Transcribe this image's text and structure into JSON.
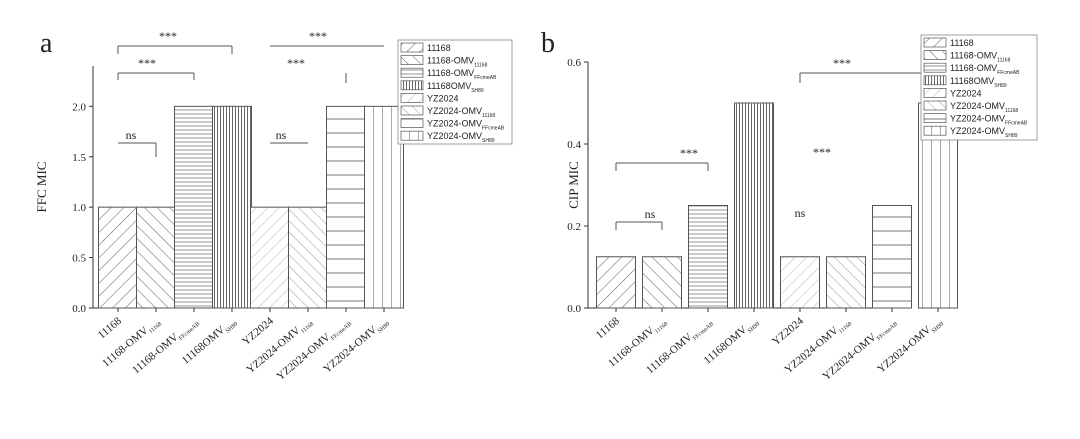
{
  "chart_data": [
    {
      "panel_label": "a",
      "type": "bar",
      "ylabel": "FFC MIC",
      "xlabel": "",
      "ylim": [
        0,
        2.4
      ],
      "yticks": [
        "0.0",
        "0.5",
        "1.0",
        "1.5",
        "2.0"
      ],
      "ytick_values": [
        0.0,
        0.5,
        1.0,
        1.5,
        2.0
      ],
      "grid": false,
      "legend_position": "top-right",
      "categories": [
        {
          "label": "11168",
          "sub": ""
        },
        {
          "label": "11168-OMV",
          "sub": "11168"
        },
        {
          "label": "11168-OMV",
          "sub": "FFcmeAB"
        },
        {
          "label": "11168OMV",
          "sub": "SH89"
        },
        {
          "label": "YZ2024",
          "sub": ""
        },
        {
          "label": "YZ2024-OMV",
          "sub": "11168"
        },
        {
          "label": "YZ2024-OMV",
          "sub": "FFcmeAB"
        },
        {
          "label": "YZ2024-OMV",
          "sub": "SH89"
        }
      ],
      "values": [
        1,
        1,
        2,
        2,
        1,
        1,
        2,
        2
      ],
      "legend": [
        {
          "label": "11168",
          "sub": ""
        },
        {
          "label": "11168-OMV",
          "sub": "11168"
        },
        {
          "label": "11168-OMV",
          "sub": "FFcmeAB"
        },
        {
          "label": "11168OMV",
          "sub": "SH89"
        },
        {
          "label": "YZ2024",
          "sub": ""
        },
        {
          "label": "YZ2024-OMV",
          "sub": "11168"
        },
        {
          "label": "YZ2024-OMV",
          "sub": "FFcmeAB"
        },
        {
          "label": "YZ2024-OMV",
          "sub": "SH89"
        }
      ],
      "annotations": [
        {
          "text": "***",
          "from": 0,
          "to": 3
        },
        {
          "text": "***",
          "from": 0,
          "to": 2
        },
        {
          "text": "ns",
          "from": 0,
          "to": 1
        },
        {
          "text": "***",
          "from": 4,
          "to": 7
        },
        {
          "text": "***",
          "from": 4,
          "to": 6
        },
        {
          "text": "ns",
          "from": 4,
          "to": 5
        }
      ]
    },
    {
      "panel_label": "b",
      "type": "bar",
      "ylabel": "CIP MIC",
      "xlabel": "",
      "ylim": [
        0,
        0.6
      ],
      "yticks": [
        "0.0",
        "0.2",
        "0.4",
        "0.6"
      ],
      "ytick_values": [
        0.0,
        0.2,
        0.4,
        0.6
      ],
      "grid": false,
      "legend_position": "top-right",
      "categories": [
        {
          "label": "11168",
          "sub": ""
        },
        {
          "label": "11168-OMV",
          "sub": "11168"
        },
        {
          "label": "11168-OMV",
          "sub": "FFcmeAB"
        },
        {
          "label": "11168OMV",
          "sub": "SH89"
        },
        {
          "label": "YZ2024",
          "sub": ""
        },
        {
          "label": "YZ2024-OMV",
          "sub": "11168"
        },
        {
          "label": "YZ2024-OMV",
          "sub": "FFcmeAB"
        },
        {
          "label": "YZ2024-OMV",
          "sub": "SH89"
        }
      ],
      "values": [
        0.125,
        0.125,
        0.25,
        0.5,
        0.125,
        0.125,
        0.25,
        0.5
      ],
      "legend": [
        {
          "label": "11168",
          "sub": ""
        },
        {
          "label": "11168-OMV",
          "sub": "11168"
        },
        {
          "label": "11168-OMV",
          "sub": "FFcmeAB"
        },
        {
          "label": "11168OMV",
          "sub": "SH89"
        },
        {
          "label": "YZ2024",
          "sub": ""
        },
        {
          "label": "YZ2024-OMV",
          "sub": "11168"
        },
        {
          "label": "YZ2024-OMV",
          "sub": "FFcmeAB"
        },
        {
          "label": "YZ2024-OMV",
          "sub": "SH89"
        }
      ],
      "annotations": [
        {
          "text": "***",
          "from": 0,
          "to": 2
        },
        {
          "text": "ns",
          "from": 0,
          "to": 1
        },
        {
          "text": "***",
          "from": 4,
          "to": 7
        },
        {
          "text": "***",
          "from": 4,
          "to": 6
        },
        {
          "text": "ns",
          "from": 4,
          "to": 5
        }
      ]
    }
  ],
  "colors": {
    "axis": "#333333",
    "bar_outline": "#555555",
    "hatch": "#666666",
    "background": "#ffffff"
  }
}
